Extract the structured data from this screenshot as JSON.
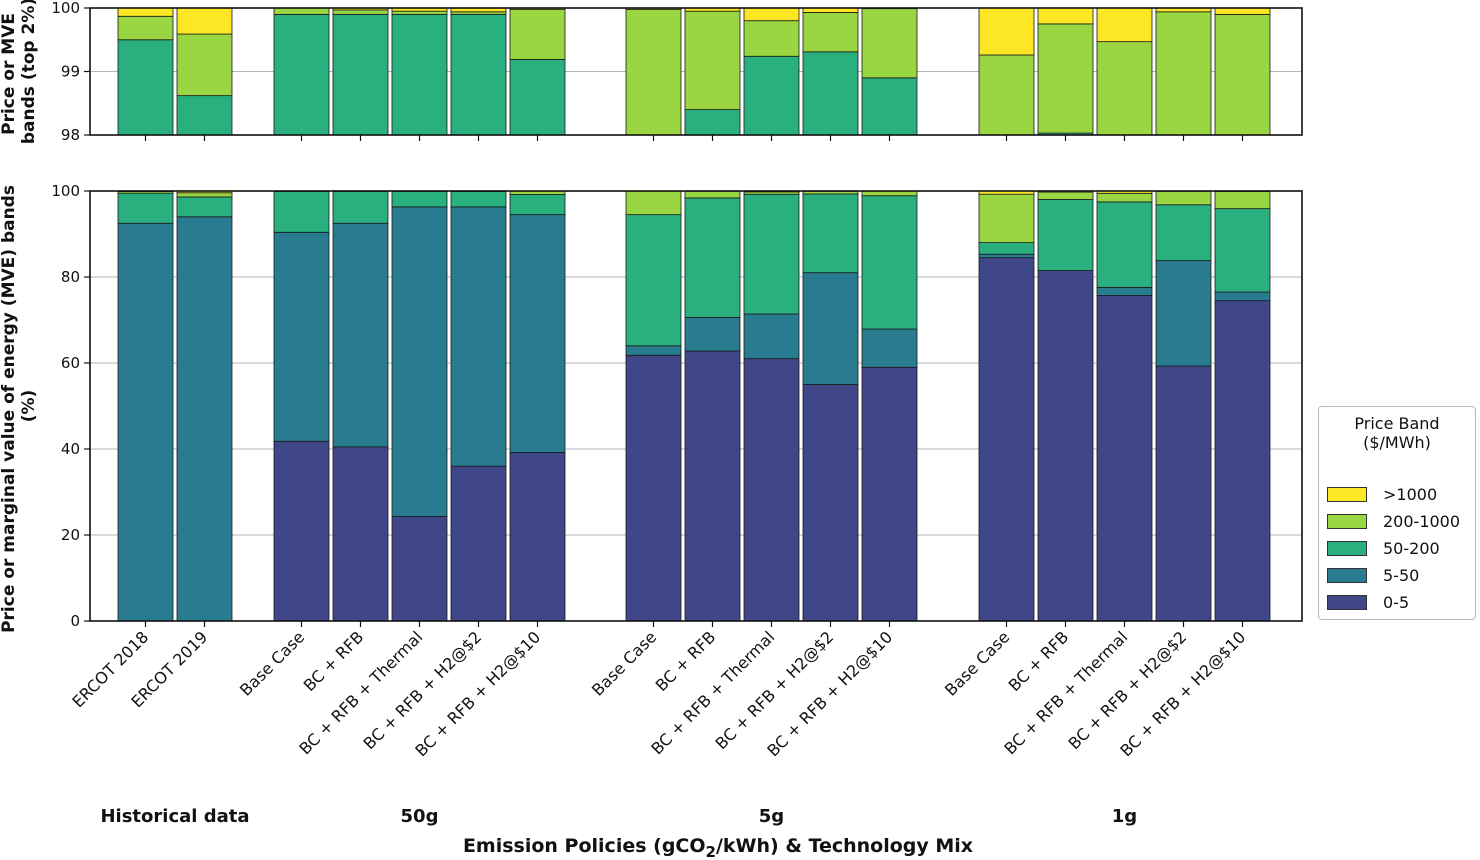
{
  "chart_data": {
    "type": "stacked-bar",
    "xlabel_parts": [
      "Emission Policies (gCO",
      "2",
      "/kWh) & Technology Mix"
    ],
    "top_panel": {
      "ylabel_lines": [
        "Price or MVE",
        "bands (top 2%)"
      ],
      "ylim": [
        98,
        100
      ],
      "yticks": [
        "98",
        "99",
        "100"
      ]
    },
    "bottom_panel": {
      "ylabel_lines": [
        "Price or marginal value of energy (MVE) bands",
        "(%)"
      ],
      "ylim": [
        0,
        100
      ],
      "yticks": [
        "0",
        "20",
        "40",
        "60",
        "80",
        "100"
      ]
    },
    "legend": {
      "title_lines": [
        "Price Band",
        "($/MWh)"
      ],
      "entries": [
        {
          "label": ">1000",
          "color": "#fde725"
        },
        {
          "label": "200-1000",
          "color": "#9ad641"
        },
        {
          "label": "50-200",
          "color": "#2ab07f"
        },
        {
          "label": "5-50",
          "color": "#297c90"
        },
        {
          "label": "0-5",
          "color": "#3f4788"
        }
      ]
    },
    "series_order": [
      "0-5",
      "5-50",
      "50-200",
      "200-1000",
      ">1000"
    ],
    "series_colors": {
      "0-5": "#3f4788",
      "5-50": "#297c90",
      "50-200": "#2ab07f",
      "200-1000": "#9ad641",
      ">1000": "#fde725"
    },
    "groups": [
      {
        "label": "Historical data",
        "bars": [
          {
            "label": "ERCOT 2018",
            "values": [
              0,
              92.5,
              7.0,
              0.37,
              0.13
            ]
          },
          {
            "label": "ERCOT 2019",
            "values": [
              0,
              94.0,
              4.62,
              0.97,
              0.41
            ]
          }
        ]
      },
      {
        "label": "50g",
        "bars": [
          {
            "label": "Base Case",
            "values": [
              41.8,
              48.6,
              9.5,
              0.1,
              0.0
            ]
          },
          {
            "label": "BC + RFB",
            "values": [
              40.5,
              52.0,
              7.4,
              0.07,
              0.03
            ]
          },
          {
            "label": "BC + RFB + Thermal",
            "values": [
              24.3,
              72.0,
              3.6,
              0.05,
              0.05
            ]
          },
          {
            "label": "BC + RFB + H2@$2",
            "values": [
              36.0,
              60.3,
              3.6,
              0.04,
              0.06
            ]
          },
          {
            "label": "BC + RFB + H2@$10",
            "values": [
              39.2,
              55.3,
              4.69,
              0.79,
              0.02
            ]
          }
        ]
      },
      {
        "label": "5g",
        "bars": [
          {
            "label": "Base Case",
            "values": [
              61.8,
              2.2,
              30.5,
              5.48,
              0.02
            ]
          },
          {
            "label": "BC + RFB",
            "values": [
              62.8,
              7.8,
              27.8,
              1.55,
              0.05
            ]
          },
          {
            "label": "BC + RFB + Thermal",
            "values": [
              61.0,
              10.4,
              27.84,
              0.56,
              0.2
            ]
          },
          {
            "label": "BC + RFB + H2@$2",
            "values": [
              55.0,
              26.0,
              18.31,
              0.62,
              0.07
            ]
          },
          {
            "label": "BC + RFB + H2@$10",
            "values": [
              59.0,
              8.9,
              31.0,
              1.09,
              0.01
            ]
          }
        ]
      },
      {
        "label": "1g",
        "bars": [
          {
            "label": "Base Case",
            "values": [
              84.5,
              0.8,
              2.7,
              11.26,
              0.74
            ]
          },
          {
            "label": "BC + RFB",
            "values": [
              81.5,
              0,
              16.53,
              1.72,
              0.25
            ]
          },
          {
            "label": "BC + RFB + Thermal",
            "values": [
              75.7,
              1.9,
              19.87,
              2.0,
              0.53
            ]
          },
          {
            "label": "BC + RFB + H2@$2",
            "values": [
              59.3,
              24.5,
              13.0,
              3.14,
              0.06
            ]
          },
          {
            "label": "BC + RFB + H2@$10",
            "values": [
              74.5,
              2.0,
              19.4,
              4.0,
              0.1
            ]
          }
        ]
      }
    ]
  }
}
